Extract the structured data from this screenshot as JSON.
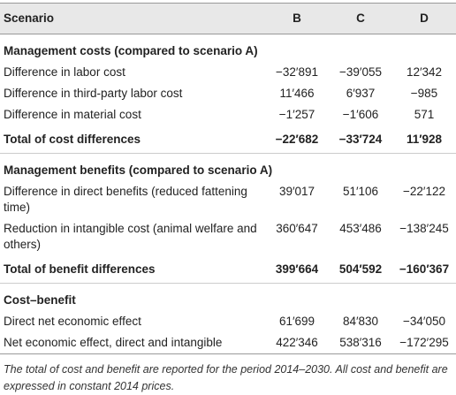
{
  "table": {
    "header": [
      "Scenario",
      "B",
      "C",
      "D"
    ],
    "sections": [
      {
        "title": "Management costs (compared to scenario A)",
        "rows": [
          [
            "Difference in labor cost",
            "−32′891",
            "−39′055",
            "12′342"
          ],
          [
            "Difference in third-party labor cost",
            "11′466",
            "6′937",
            "−985"
          ],
          [
            "Difference in material cost",
            "−1′257",
            "−1′606",
            "571"
          ]
        ],
        "total": [
          "Total of cost differences",
          "−22′682",
          "−33′724",
          "11′928"
        ]
      },
      {
        "title": "Management benefits (compared to scenario A)",
        "rows": [
          [
            "Difference in direct benefits (reduced fattening time)",
            "39′017",
            "51′106",
            "−22′122"
          ],
          [
            "Reduction in intangible cost (animal welfare and others)",
            "360′647",
            "453′486",
            "−138′245"
          ]
        ],
        "total": [
          "Total of benefit differences",
          "399′664",
          "504′592",
          "−160′367"
        ]
      },
      {
        "title": "Cost–benefit",
        "rows": [
          [
            "Direct net economic effect",
            "61′699",
            "84′830",
            "−34′050"
          ],
          [
            "Net economic effect, direct and intangible",
            "422′346",
            "538′316",
            "−172′295"
          ]
        ]
      }
    ],
    "footnote": "The total of cost and benefit are reported for the period 2014–2030. All cost and benefit are expressed in constant 2014 prices."
  }
}
